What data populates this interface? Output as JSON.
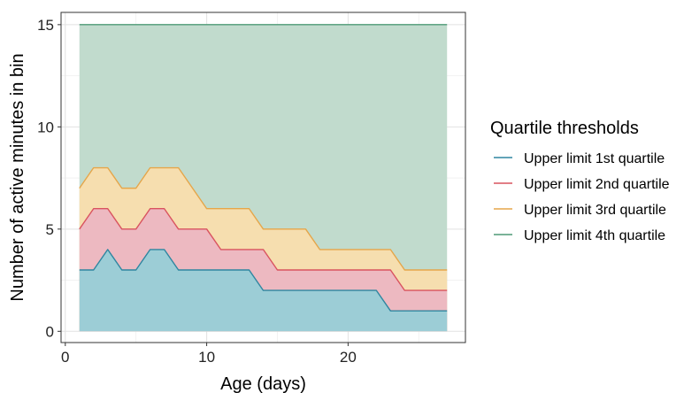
{
  "chart_data": {
    "type": "area",
    "title": "",
    "xlabel": "Age (days)",
    "ylabel": "Number of active minutes in bin",
    "xlim": [
      -0.3,
      28.3
    ],
    "ylim": [
      -0.55,
      15.6
    ],
    "xticks": [
      0,
      10,
      20
    ],
    "yticks": [
      0,
      5,
      10,
      15
    ],
    "grid": true,
    "stacked": false,
    "legend": {
      "title": "Quartile thresholds",
      "position": "right"
    },
    "x": [
      1,
      2,
      3,
      4,
      5,
      6,
      7,
      8,
      9,
      10,
      11,
      12,
      13,
      14,
      15,
      16,
      17,
      18,
      19,
      20,
      21,
      22,
      23,
      24,
      25,
      26,
      27
    ],
    "series": [
      {
        "name": "Upper limit 1st quartile",
        "line_color": "#2E86A0",
        "fill_color": "#9CCDD6",
        "values": [
          3,
          3,
          4,
          3,
          3,
          4,
          4,
          3,
          3,
          3,
          3,
          3,
          3,
          2,
          2,
          2,
          2,
          2,
          2,
          2,
          2,
          2,
          1,
          1,
          1,
          1,
          1
        ]
      },
      {
        "name": "Upper limit 2nd quartile",
        "line_color": "#D9535F",
        "fill_color": "#EDB9C1",
        "values": [
          5,
          6,
          6,
          5,
          5,
          6,
          6,
          5,
          5,
          5,
          4,
          4,
          4,
          4,
          3,
          3,
          3,
          3,
          3,
          3,
          3,
          3,
          3,
          2,
          2,
          2,
          2
        ]
      },
      {
        "name": "Upper limit 3rd quartile",
        "line_color": "#E5A64A",
        "fill_color": "#F6DEAF",
        "values": [
          7,
          8,
          8,
          7,
          7,
          8,
          8,
          8,
          7,
          6,
          6,
          6,
          6,
          5,
          5,
          5,
          5,
          4,
          4,
          4,
          4,
          4,
          4,
          3,
          3,
          3,
          3
        ]
      },
      {
        "name": "Upper limit 4th quartile",
        "line_color": "#4E9A76",
        "fill_color": "#C1DBCD",
        "values": [
          15,
          15,
          15,
          15,
          15,
          15,
          15,
          15,
          15,
          15,
          15,
          15,
          15,
          15,
          15,
          15,
          15,
          15,
          15,
          15,
          15,
          15,
          15,
          15,
          15,
          15,
          15
        ]
      }
    ]
  }
}
